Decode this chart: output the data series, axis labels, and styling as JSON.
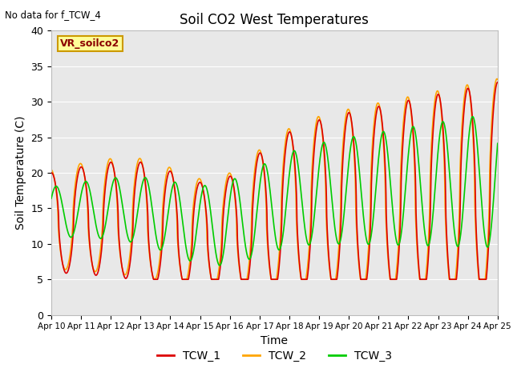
{
  "title": "Soil CO2 West Temperatures",
  "no_data_text": "No data for f_TCW_4",
  "vr_label": "VR_soilco2",
  "xlabel": "Time",
  "ylabel": "Soil Temperature (C)",
  "ylim": [
    0,
    40
  ],
  "bg_color": "#e8e8e8",
  "fig_color": "#ffffff",
  "line_colors": {
    "TCW_1": "#dd0000",
    "TCW_2": "#ffa500",
    "TCW_3": "#00cc00"
  },
  "line_width": 1.2,
  "x_tick_labels": [
    "Apr 10",
    "Apr 11",
    "Apr 12",
    "Apr 13",
    "Apr 14",
    "Apr 15",
    "Apr 16",
    "Apr 17",
    "Apr 18",
    "Apr 19",
    "Apr 20",
    "Apr 21",
    "Apr 22",
    "Apr 23",
    "Apr 24",
    "Apr 25"
  ]
}
